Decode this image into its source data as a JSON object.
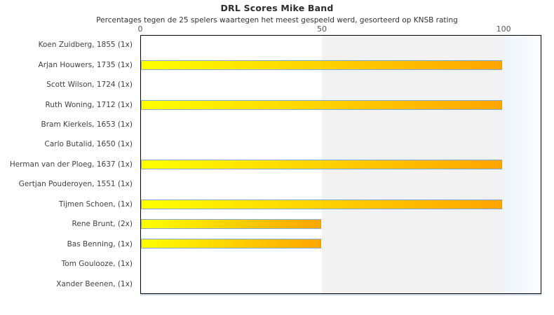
{
  "chart_data": {
    "type": "bar",
    "orientation": "horizontal",
    "title": "DRL Scores Mike Band",
    "subtitle": "Percentages tegen de 25 spelers waartegen het meest gespeeld werd, gesorteerd op KNSB rating",
    "categories": [
      "Koen Zuidberg, 1855 (1x)",
      "Arjan Houwers, 1735 (1x)",
      "Scott Wilson, 1724 (1x)",
      "Ruth Woning, 1712 (1x)",
      "Bram Kierkels, 1653 (1x)",
      "Carlo Butalid, 1650 (1x)",
      "Herman van der Ploeg, 1637 (1x)",
      "Gertjan Pouderoyen, 1551 (1x)",
      "Tijmen Schoen,  (1x)",
      "Rene Brunt,  (2x)",
      "Bas Benning,  (1x)",
      "Tom Goulooze,  (1x)",
      "Xander Beenen,  (1x)"
    ],
    "values": [
      0,
      100,
      0,
      100,
      0,
      0,
      100,
      0,
      100,
      50,
      50,
      0,
      0
    ],
    "xlabel": "",
    "ylabel": "",
    "xlim": [
      0,
      110.4
    ],
    "xticks": [
      0,
      50,
      100
    ],
    "grid": false,
    "legend": "none",
    "band": {
      "from": 50,
      "to": 100
    },
    "colors": {
      "bar_gradient_start": "#ffff00",
      "bar_gradient_end": "#ffa500",
      "bar_border": "#7ea9d8",
      "plot_border": "#000000",
      "band": "#f2f2f2",
      "overflow_gradient_start": "#eef4fa",
      "overflow_gradient_end": "#fbfdff",
      "title_color": "#2d2d2d",
      "axis_label_color": "#404040",
      "tick_label_color": "#555555"
    }
  }
}
